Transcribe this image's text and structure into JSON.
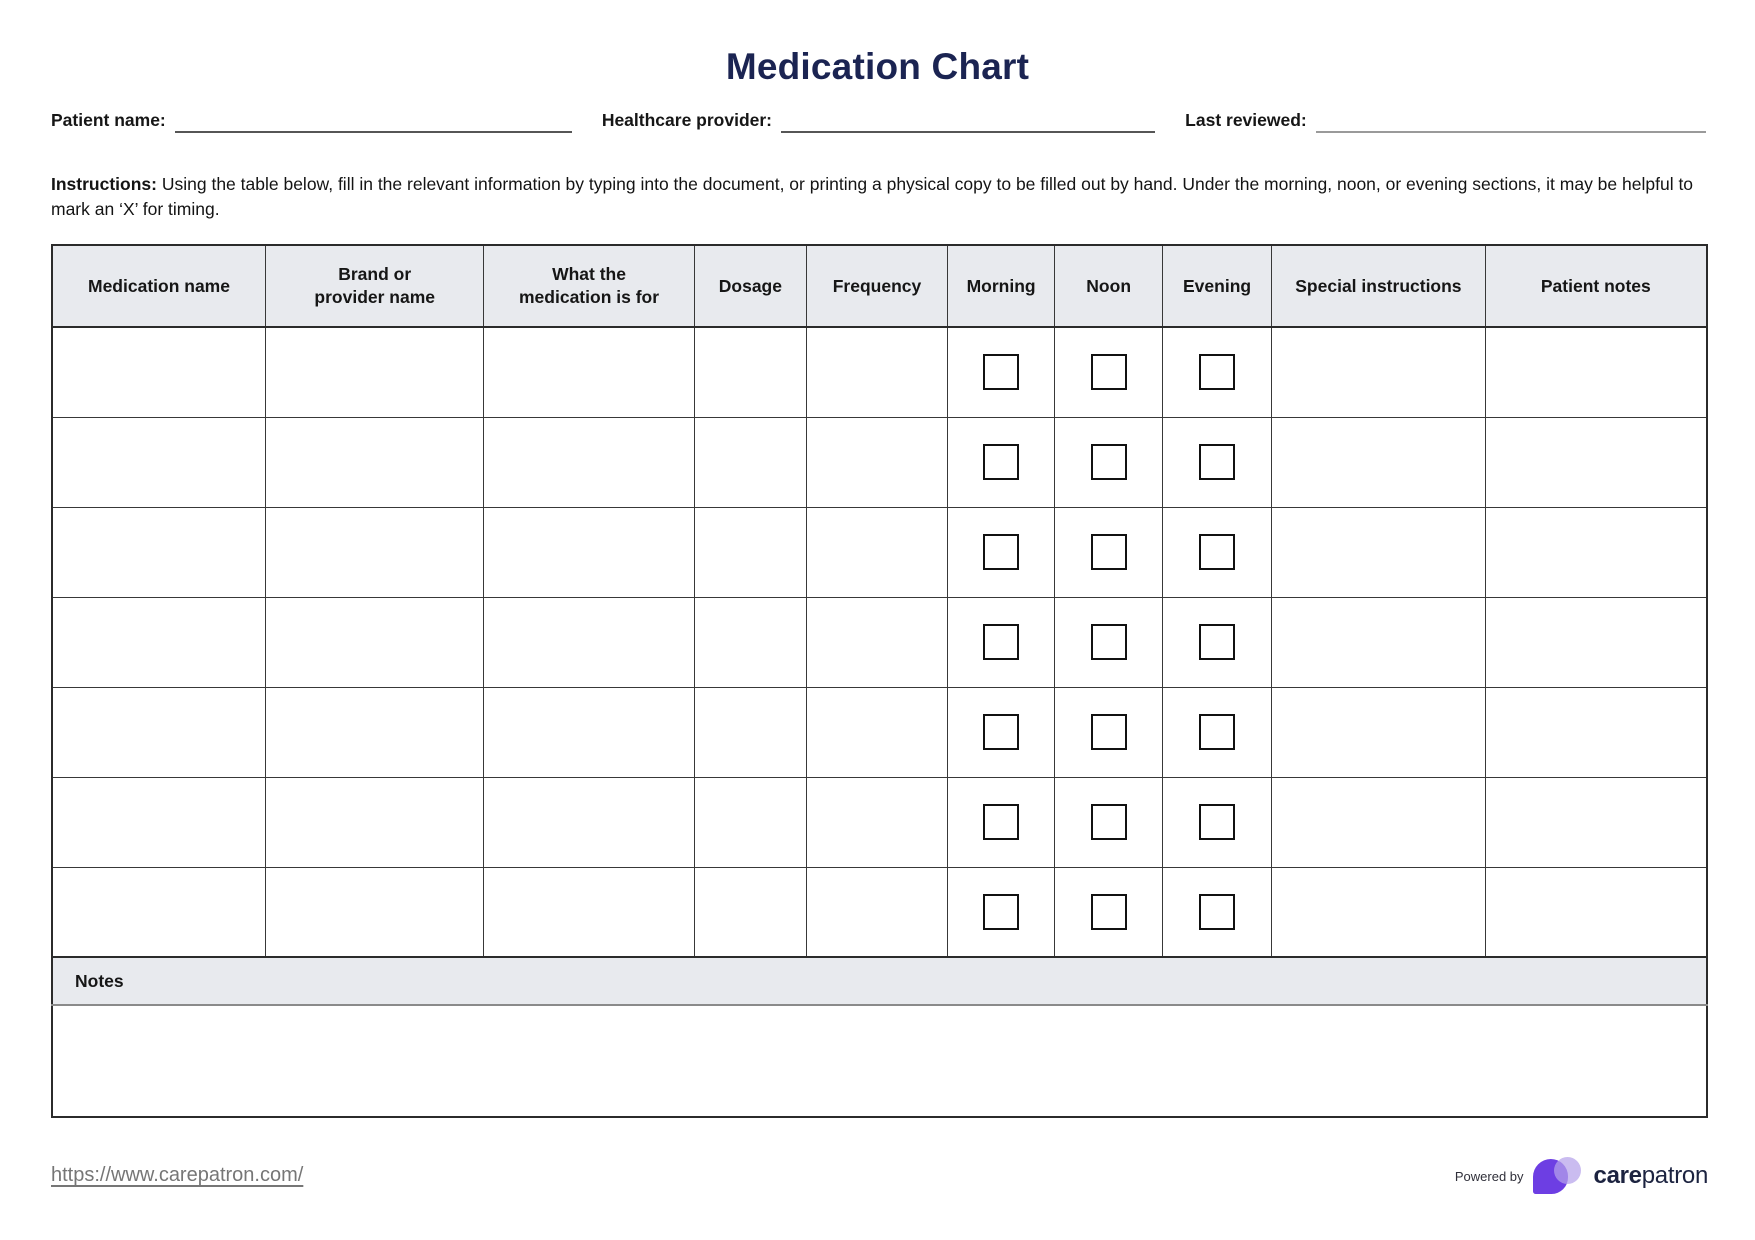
{
  "page": {
    "title": "Medication Chart"
  },
  "fields": {
    "patient_name_label": "Patient name:",
    "healthcare_provider_label": "Healthcare provider:",
    "last_reviewed_label": "Last reviewed:"
  },
  "instructions": {
    "label": "Instructions:",
    "body": "Using the table below, fill in the relevant information by typing into the document, or printing a physical copy to be filled out by hand. Under the morning, noon, or evening sections, it may be helpful to mark an ‘X’ for timing."
  },
  "table": {
    "columns": [
      {
        "key": "medication-name",
        "label": "Medication name",
        "checkbox": false
      },
      {
        "key": "brand-provider-name",
        "label": "Brand or\nprovider name",
        "checkbox": false
      },
      {
        "key": "medication-purpose",
        "label": "What the\nmedication is for",
        "checkbox": false
      },
      {
        "key": "dosage",
        "label": "Dosage",
        "checkbox": false
      },
      {
        "key": "frequency",
        "label": "Frequency",
        "checkbox": false
      },
      {
        "key": "morning",
        "label": "Morning",
        "checkbox": true
      },
      {
        "key": "noon",
        "label": "Noon",
        "checkbox": true
      },
      {
        "key": "evening",
        "label": "Evening",
        "checkbox": true
      },
      {
        "key": "special-instructions",
        "label": "Special instructions",
        "checkbox": false
      },
      {
        "key": "patient-notes",
        "label": "Patient notes",
        "checkbox": false
      }
    ],
    "row_count": 7,
    "notes_label": "Notes"
  },
  "footer": {
    "url": "https://www.carepatron.com/",
    "powered_by_label": "Powered by",
    "brand_care": "care",
    "brand_patron": "patron"
  },
  "colors": {
    "title_navy": "#1b2452",
    "header_bg": "#e8eaee",
    "table_border": "#383838",
    "link_gray": "#767676",
    "logo_purple": "#6d3ee3",
    "logo_lavender": "#b5a2ea",
    "brand_navy": "#1c2340"
  }
}
